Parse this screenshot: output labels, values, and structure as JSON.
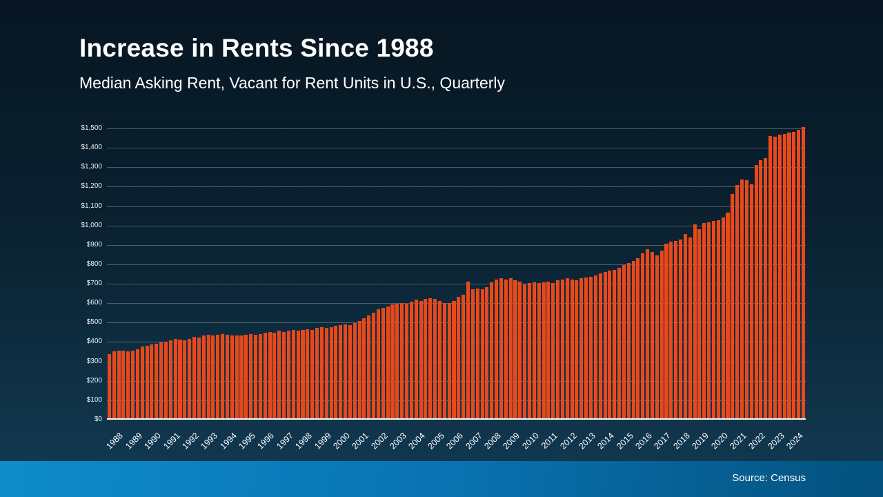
{
  "header": {
    "title": "Increase in Rents Since 1988",
    "subtitle": "Median Asking Rent, Vacant for Rent Units in U.S., Quarterly"
  },
  "footer": {
    "source": "Source: Census"
  },
  "colors": {
    "background_top": "#071622",
    "background_bottom": "#123c56",
    "bar": "#e8491a",
    "footer_strip": "#0973b2",
    "text": "#ffffff"
  },
  "chart_data": {
    "type": "bar",
    "title": "Increase in Rents Since 1988",
    "subtitle": "Median Asking Rent, Vacant for Rent Units in U.S., Quarterly",
    "xlabel": "",
    "ylabel": "",
    "ylim": [
      0,
      1500
    ],
    "grid": true,
    "legend": false,
    "quarters_per_year": 4,
    "ytick_values": [
      0,
      100,
      200,
      300,
      400,
      500,
      600,
      700,
      800,
      900,
      1000,
      1100,
      1200,
      1300,
      1400,
      1500
    ],
    "ytick_labels": [
      "$0",
      "$100",
      "$200",
      "$300",
      "$400",
      "$500",
      "$600",
      "$700",
      "$800",
      "$900",
      "$1,000",
      "$1,100",
      "$1,200",
      "$1,300",
      "$1,400",
      "$1,500"
    ],
    "categories": [
      "1988",
      "1989",
      "1990",
      "1991",
      "1992",
      "1993",
      "1994",
      "1995",
      "1996",
      "1997",
      "1998",
      "1999",
      "2000",
      "2001",
      "2002",
      "2003",
      "2004",
      "2005",
      "2006",
      "2007",
      "2008",
      "2009",
      "2010",
      "2011",
      "2012",
      "2013",
      "2014",
      "2015",
      "2016",
      "2017",
      "2018",
      "2019",
      "2020",
      "2021",
      "2022",
      "2023",
      "2024"
    ],
    "series_name": "Median Asking Rent (quarterly)",
    "values": [
      330,
      345,
      350,
      350,
      345,
      350,
      355,
      370,
      375,
      380,
      385,
      390,
      395,
      400,
      410,
      405,
      400,
      410,
      420,
      415,
      425,
      430,
      425,
      430,
      435,
      430,
      425,
      425,
      425,
      430,
      435,
      430,
      435,
      440,
      445,
      440,
      450,
      445,
      450,
      455,
      450,
      455,
      460,
      455,
      465,
      470,
      465,
      470,
      475,
      480,
      485,
      480,
      490,
      500,
      515,
      530,
      545,
      560,
      570,
      575,
      585,
      590,
      595,
      590,
      600,
      610,
      605,
      615,
      620,
      615,
      605,
      595,
      595,
      605,
      625,
      635,
      705,
      665,
      670,
      665,
      675,
      700,
      715,
      720,
      715,
      720,
      710,
      705,
      690,
      695,
      700,
      695,
      700,
      705,
      695,
      710,
      715,
      720,
      715,
      710,
      720,
      725,
      730,
      735,
      745,
      755,
      760,
      765,
      775,
      790,
      800,
      810,
      825,
      850,
      870,
      855,
      840,
      865,
      900,
      910,
      915,
      920,
      950,
      930,
      1000,
      975,
      1005,
      1010,
      1015,
      1020,
      1035,
      1060,
      1155,
      1200,
      1230,
      1225,
      1205,
      1305,
      1330,
      1340,
      1455,
      1450,
      1460,
      1465,
      1470,
      1475,
      1485,
      1500
    ]
  }
}
